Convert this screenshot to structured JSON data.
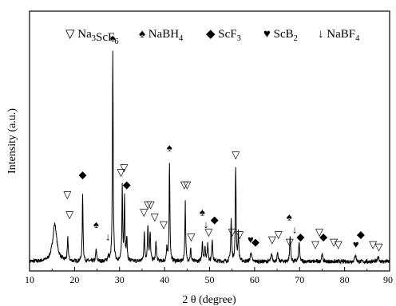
{
  "chart_data": {
    "type": "line",
    "title": "",
    "xlabel": "2 θ (degree)",
    "ylabel": "Intensity (a.u.)",
    "xlim": [
      10,
      90
    ],
    "ylim": [
      0,
      100
    ],
    "xticks": [
      10,
      20,
      30,
      40,
      50,
      60,
      70,
      80,
      90
    ],
    "grid": false,
    "legend_position": "top",
    "legend": [
      {
        "symbol": "▽",
        "text": "Na",
        "sub1": "3",
        "mid": "ScF",
        "sub2": "6"
      },
      {
        "symbol": "♠",
        "text": "NaBH",
        "sub1": "4",
        "mid": "",
        "sub2": ""
      },
      {
        "symbol": "◆",
        "text": "ScF",
        "sub1": "3",
        "mid": "",
        "sub2": ""
      },
      {
        "symbol": "♥",
        "text": "ScB",
        "sub1": "2",
        "mid": "",
        "sub2": ""
      },
      {
        "symbol": "↓",
        "text": "NaBF",
        "sub1": "4",
        "mid": "",
        "sub2": ""
      }
    ],
    "baseline": 2.5,
    "peaks": [
      {
        "x": 15.6,
        "h": 15,
        "w": 0.55
      },
      {
        "x": 18.5,
        "h": 9,
        "w": 0.12
      },
      {
        "x": 21.8,
        "h": 27,
        "w": 0.1
      },
      {
        "x": 24.8,
        "h": 5,
        "w": 0.12
      },
      {
        "x": 27.5,
        "h": 2,
        "w": 0.15
      },
      {
        "x": 28.5,
        "h": 84,
        "w": 0.1
      },
      {
        "x": 30.6,
        "h": 30,
        "w": 0.1
      },
      {
        "x": 31.1,
        "h": 26,
        "w": 0.1
      },
      {
        "x": 31.6,
        "h": 9,
        "w": 0.12
      },
      {
        "x": 35.5,
        "h": 11,
        "w": 0.12
      },
      {
        "x": 36.3,
        "h": 14,
        "w": 0.12
      },
      {
        "x": 36.8,
        "h": 11,
        "w": 0.12
      },
      {
        "x": 38.1,
        "h": 8,
        "w": 0.12
      },
      {
        "x": 40.5,
        "h": 5,
        "w": 0.12
      },
      {
        "x": 41.1,
        "h": 40,
        "w": 0.1
      },
      {
        "x": 44.6,
        "h": 24,
        "w": 0.1
      },
      {
        "x": 45.8,
        "h": 5,
        "w": 0.12
      },
      {
        "x": 48.4,
        "h": 8,
        "w": 0.12
      },
      {
        "x": 49.0,
        "h": 6,
        "w": 0.12
      },
      {
        "x": 49.6,
        "h": 7,
        "w": 0.12
      },
      {
        "x": 50.6,
        "h": 9,
        "w": 0.12
      },
      {
        "x": 54.8,
        "h": 17,
        "w": 0.12
      },
      {
        "x": 55.8,
        "h": 38,
        "w": 0.1
      },
      {
        "x": 56.4,
        "h": 11,
        "w": 0.12
      },
      {
        "x": 59.2,
        "h": 4,
        "w": 0.15
      },
      {
        "x": 63.8,
        "h": 3,
        "w": 0.15
      },
      {
        "x": 65.1,
        "h": 3,
        "w": 0.15
      },
      {
        "x": 67.9,
        "h": 10,
        "w": 0.12
      },
      {
        "x": 69.9,
        "h": 8,
        "w": 0.12
      },
      {
        "x": 75.0,
        "h": 3,
        "w": 0.15
      },
      {
        "x": 82.4,
        "h": 3,
        "w": 0.15
      },
      {
        "x": 87.5,
        "h": 2,
        "w": 0.15
      }
    ],
    "markers": [
      {
        "symbol": "♠",
        "x": 28.5,
        "y": 91
      },
      {
        "symbol": "▽",
        "x": 18.4,
        "y": 28
      },
      {
        "symbol": "▽",
        "x": 18.9,
        "y": 20
      },
      {
        "symbol": "◆",
        "x": 21.8,
        "y": 36
      },
      {
        "symbol": "♠",
        "x": 24.8,
        "y": 16
      },
      {
        "symbol": "↓",
        "x": 27.4,
        "y": 11
      },
      {
        "symbol": "▽",
        "x": 30.3,
        "y": 37
      },
      {
        "symbol": "▽",
        "x": 31.0,
        "y": 39
      },
      {
        "symbol": "◆",
        "x": 31.6,
        "y": 32
      },
      {
        "symbol": "▽",
        "x": 35.4,
        "y": 21
      },
      {
        "symbol": "▽",
        "x": 36.3,
        "y": 24
      },
      {
        "symbol": "▽",
        "x": 36.9,
        "y": 24
      },
      {
        "symbol": "▽",
        "x": 37.8,
        "y": 19
      },
      {
        "symbol": "▽",
        "x": 39.8,
        "y": 16
      },
      {
        "symbol": "♠",
        "x": 41.1,
        "y": 47
      },
      {
        "symbol": "▽",
        "x": 44.4,
        "y": 32
      },
      {
        "symbol": "▽",
        "x": 45.0,
        "y": 32
      },
      {
        "symbol": "▽",
        "x": 45.9,
        "y": 11
      },
      {
        "symbol": "♠",
        "x": 48.4,
        "y": 21
      },
      {
        "symbol": "↓",
        "x": 49.2,
        "y": 16
      },
      {
        "symbol": "▽",
        "x": 49.8,
        "y": 13
      },
      {
        "symbol": "◆",
        "x": 51.1,
        "y": 18
      },
      {
        "symbol": "▽",
        "x": 55.0,
        "y": 13
      },
      {
        "symbol": "▽",
        "x": 55.8,
        "y": 44
      },
      {
        "symbol": "▽",
        "x": 56.7,
        "y": 12
      },
      {
        "symbol": "♥",
        "x": 59.1,
        "y": 10
      },
      {
        "symbol": "◆",
        "x": 60.2,
        "y": 9
      },
      {
        "symbol": "▽",
        "x": 63.9,
        "y": 10
      },
      {
        "symbol": "▽",
        "x": 65.3,
        "y": 12
      },
      {
        "symbol": "♠",
        "x": 67.7,
        "y": 19
      },
      {
        "symbol": "↓",
        "x": 68.9,
        "y": 14
      },
      {
        "symbol": "▽",
        "x": 67.8,
        "y": 9
      },
      {
        "symbol": "◆",
        "x": 70.2,
        "y": 11
      },
      {
        "symbol": "▽",
        "x": 73.5,
        "y": 8
      },
      {
        "symbol": "▽",
        "x": 74.4,
        "y": 13
      },
      {
        "symbol": "◆",
        "x": 75.3,
        "y": 11
      },
      {
        "symbol": "▽",
        "x": 77.6,
        "y": 9
      },
      {
        "symbol": "▽",
        "x": 78.6,
        "y": 8
      },
      {
        "symbol": "♥",
        "x": 82.5,
        "y": 8
      },
      {
        "symbol": "◆",
        "x": 83.6,
        "y": 12
      },
      {
        "symbol": "▽",
        "x": 86.3,
        "y": 8
      },
      {
        "symbol": "▽",
        "x": 87.6,
        "y": 7
      }
    ]
  }
}
